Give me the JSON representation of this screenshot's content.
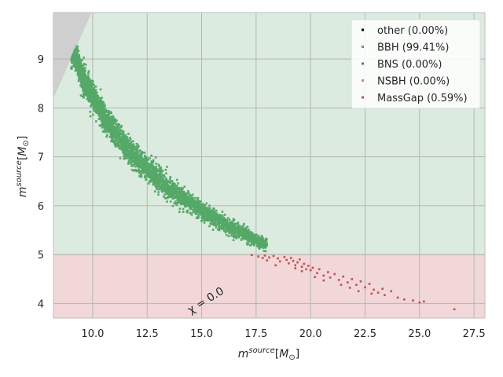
{
  "chart_data": {
    "type": "scatter",
    "title": "",
    "xlabel": "m1 source [M⊙]",
    "ylabel": "m2 source [M⊙]",
    "xlim": [
      8.2,
      28.0
    ],
    "ylim": [
      3.7,
      9.95
    ],
    "x_ticks": [
      "10.0",
      "12.5",
      "15.0",
      "17.5",
      "20.0",
      "22.5",
      "25.0",
      "27.5"
    ],
    "y_ticks": [
      "4",
      "5",
      "6",
      "7",
      "8",
      "9"
    ],
    "grid": true,
    "legend_position": "top-right",
    "regions": [
      {
        "name": "MassGap",
        "y_range": [
          3.7,
          5.0
        ],
        "color": "#f2d7d9"
      },
      {
        "name": "BBH",
        "y_range": [
          5.0,
          9.95
        ],
        "color": "#dcebdf"
      },
      {
        "name": "excluded",
        "condition": "m2 > m1",
        "color": "#cfcfcf"
      }
    ],
    "annotation": {
      "text": "χ = 0.0",
      "x": 15.0,
      "y": 3.75
    },
    "series": [
      {
        "name": "other (0.00%)",
        "color": "#000000",
        "points": []
      },
      {
        "name": "BBH (99.41%)",
        "color": "#55a868",
        "centerline": [
          [
            9.0,
            9.35
          ],
          [
            9.5,
            8.65
          ],
          [
            10.0,
            8.22
          ],
          [
            10.5,
            7.82
          ],
          [
            11.0,
            7.5
          ],
          [
            11.5,
            7.22
          ],
          [
            12.0,
            6.97
          ],
          [
            12.5,
            6.75
          ],
          [
            13.0,
            6.55
          ],
          [
            13.5,
            6.36
          ],
          [
            14.0,
            6.2
          ],
          [
            14.5,
            6.05
          ],
          [
            15.0,
            5.9
          ],
          [
            15.5,
            5.77
          ],
          [
            16.0,
            5.64
          ],
          [
            16.5,
            5.52
          ],
          [
            17.0,
            5.41
          ],
          [
            17.5,
            5.3
          ],
          [
            18.0,
            5.18
          ]
        ],
        "spread": 0.12,
        "count": 4200
      },
      {
        "name": "BNS (0.00%)",
        "color": "#4c72b0",
        "points": []
      },
      {
        "name": "NSBH (0.00%)",
        "color": "#dd8452",
        "points": []
      },
      {
        "name": "MassGap (0.59%)",
        "color": "#c44e52",
        "points": [
          [
            17.3,
            4.99
          ],
          [
            17.6,
            4.96
          ],
          [
            17.9,
            4.98
          ],
          [
            18.1,
            4.94
          ],
          [
            18.3,
            4.97
          ],
          [
            18.5,
            4.92
          ],
          [
            18.6,
            4.86
          ],
          [
            18.8,
            4.95
          ],
          [
            18.9,
            4.89
          ],
          [
            19.0,
            4.82
          ],
          [
            19.1,
            4.93
          ],
          [
            19.2,
            4.87
          ],
          [
            19.3,
            4.78
          ],
          [
            19.4,
            4.84
          ],
          [
            19.5,
            4.9
          ],
          [
            19.6,
            4.75
          ],
          [
            19.7,
            4.81
          ],
          [
            19.8,
            4.7
          ],
          [
            19.9,
            4.77
          ],
          [
            20.0,
            4.68
          ],
          [
            20.1,
            4.73
          ],
          [
            20.3,
            4.62
          ],
          [
            20.4,
            4.7
          ],
          [
            20.6,
            4.57
          ],
          [
            20.8,
            4.64
          ],
          [
            20.9,
            4.53
          ],
          [
            21.1,
            4.6
          ],
          [
            21.3,
            4.48
          ],
          [
            21.5,
            4.55
          ],
          [
            21.7,
            4.43
          ],
          [
            21.9,
            4.5
          ],
          [
            22.1,
            4.38
          ],
          [
            22.3,
            4.45
          ],
          [
            22.5,
            4.33
          ],
          [
            22.7,
            4.4
          ],
          [
            22.9,
            4.28
          ],
          [
            23.1,
            4.22
          ],
          [
            23.4,
            4.17
          ],
          [
            23.7,
            4.25
          ],
          [
            24.0,
            4.12
          ],
          [
            24.3,
            4.08
          ],
          [
            24.7,
            4.06
          ],
          [
            25.0,
            4.02
          ],
          [
            25.2,
            4.04
          ],
          [
            26.6,
            3.88
          ],
          [
            18.4,
            4.78
          ],
          [
            19.6,
            4.66
          ],
          [
            20.6,
            4.47
          ],
          [
            21.4,
            4.38
          ],
          [
            22.2,
            4.25
          ],
          [
            18.0,
            4.88
          ],
          [
            17.8,
            4.93
          ],
          [
            19.3,
            4.72
          ],
          [
            20.2,
            4.54
          ],
          [
            21.8,
            4.32
          ],
          [
            23.3,
            4.3
          ],
          [
            22.8,
            4.2
          ]
        ]
      }
    ]
  }
}
